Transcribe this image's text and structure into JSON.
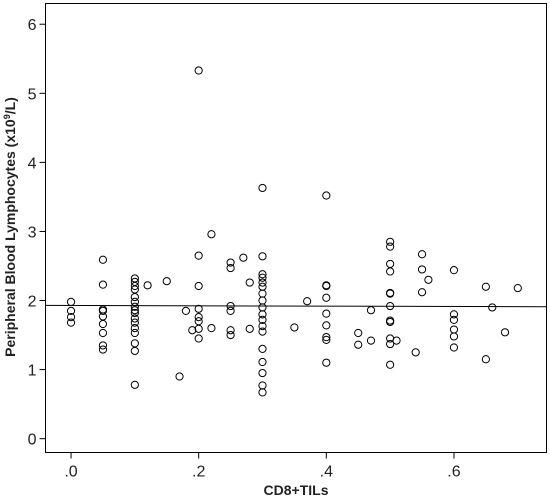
{
  "chart_data": {
    "type": "scatter",
    "xlabel": "CD8+TILs",
    "ylabel_main": "Peripheral Blood Lymphocytes (x10",
    "ylabel_sup": "9",
    "ylabel_end": "/L)",
    "xlim": [
      -0.04,
      0.745
    ],
    "ylim": [
      -0.2,
      6.3
    ],
    "x_ticks": [
      0,
      0.2,
      0.4,
      0.6
    ],
    "x_tick_labels": [
      ".0",
      ".2",
      ".4",
      ".6"
    ],
    "y_ticks": [
      0,
      1,
      2,
      3,
      4,
      5,
      6
    ],
    "y_tick_labels": [
      "0",
      "1",
      "2",
      "3",
      "4",
      "5",
      "6"
    ],
    "grid": false,
    "marker": "open-circle",
    "fit_line": {
      "x": [
        -0.04,
        0.745
      ],
      "y": [
        1.93,
        1.91
      ]
    },
    "points": [
      [
        0.0,
        1.98
      ],
      [
        0.0,
        1.85
      ],
      [
        0.0,
        1.76
      ],
      [
        0.0,
        1.68
      ],
      [
        0.05,
        2.59
      ],
      [
        0.05,
        2.23
      ],
      [
        0.05,
        1.87
      ],
      [
        0.05,
        1.85
      ],
      [
        0.05,
        1.77
      ],
      [
        0.05,
        1.66
      ],
      [
        0.05,
        1.53
      ],
      [
        0.05,
        1.35
      ],
      [
        0.05,
        1.29
      ],
      [
        0.1,
        2.32
      ],
      [
        0.1,
        2.27
      ],
      [
        0.1,
        2.21
      ],
      [
        0.1,
        2.16
      ],
      [
        0.1,
        2.05
      ],
      [
        0.1,
        1.98
      ],
      [
        0.1,
        1.91
      ],
      [
        0.1,
        1.86
      ],
      [
        0.1,
        1.82
      ],
      [
        0.1,
        1.74
      ],
      [
        0.1,
        1.68
      ],
      [
        0.1,
        1.6
      ],
      [
        0.1,
        1.53
      ],
      [
        0.1,
        1.38
      ],
      [
        0.1,
        1.27
      ],
      [
        0.1,
        0.78
      ],
      [
        0.12,
        2.22
      ],
      [
        0.15,
        2.28
      ],
      [
        0.17,
        0.9
      ],
      [
        0.18,
        1.85
      ],
      [
        0.19,
        1.57
      ],
      [
        0.2,
        5.33
      ],
      [
        0.2,
        2.65
      ],
      [
        0.2,
        2.21
      ],
      [
        0.2,
        1.88
      ],
      [
        0.2,
        1.76
      ],
      [
        0.2,
        1.7
      ],
      [
        0.2,
        1.59
      ],
      [
        0.2,
        1.45
      ],
      [
        0.22,
        2.96
      ],
      [
        0.22,
        1.6
      ],
      [
        0.25,
        2.55
      ],
      [
        0.25,
        2.47
      ],
      [
        0.25,
        1.92
      ],
      [
        0.25,
        1.85
      ],
      [
        0.25,
        1.57
      ],
      [
        0.25,
        1.5
      ],
      [
        0.27,
        2.62
      ],
      [
        0.28,
        2.26
      ],
      [
        0.28,
        1.59
      ],
      [
        0.3,
        3.63
      ],
      [
        0.3,
        2.64
      ],
      [
        0.3,
        2.38
      ],
      [
        0.3,
        2.33
      ],
      [
        0.3,
        2.26
      ],
      [
        0.3,
        2.2
      ],
      [
        0.3,
        2.1
      ],
      [
        0.3,
        2.0
      ],
      [
        0.3,
        1.9
      ],
      [
        0.3,
        1.8
      ],
      [
        0.3,
        1.72
      ],
      [
        0.3,
        1.63
      ],
      [
        0.3,
        1.55
      ],
      [
        0.3,
        1.3
      ],
      [
        0.3,
        1.11
      ],
      [
        0.3,
        0.95
      ],
      [
        0.3,
        0.77
      ],
      [
        0.3,
        0.67
      ],
      [
        0.35,
        1.61
      ],
      [
        0.37,
        1.99
      ],
      [
        0.4,
        3.52
      ],
      [
        0.4,
        2.22
      ],
      [
        0.4,
        2.21
      ],
      [
        0.4,
        2.04
      ],
      [
        0.4,
        1.81
      ],
      [
        0.4,
        1.64
      ],
      [
        0.4,
        1.47
      ],
      [
        0.4,
        1.43
      ],
      [
        0.4,
        1.1
      ],
      [
        0.45,
        1.53
      ],
      [
        0.45,
        1.36
      ],
      [
        0.47,
        1.86
      ],
      [
        0.47,
        1.42
      ],
      [
        0.5,
        2.85
      ],
      [
        0.5,
        2.78
      ],
      [
        0.5,
        2.53
      ],
      [
        0.5,
        2.42
      ],
      [
        0.5,
        2.11
      ],
      [
        0.5,
        2.1
      ],
      [
        0.5,
        1.92
      ],
      [
        0.5,
        1.71
      ],
      [
        0.5,
        1.69
      ],
      [
        0.5,
        1.45
      ],
      [
        0.5,
        1.37
      ],
      [
        0.5,
        1.07
      ],
      [
        0.51,
        1.42
      ],
      [
        0.54,
        1.25
      ],
      [
        0.55,
        2.67
      ],
      [
        0.55,
        2.45
      ],
      [
        0.56,
        2.3
      ],
      [
        0.55,
        2.12
      ],
      [
        0.6,
        2.44
      ],
      [
        0.6,
        1.8
      ],
      [
        0.6,
        1.72
      ],
      [
        0.6,
        1.58
      ],
      [
        0.6,
        1.48
      ],
      [
        0.6,
        1.32
      ],
      [
        0.65,
        2.2
      ],
      [
        0.65,
        1.15
      ],
      [
        0.66,
        1.9
      ],
      [
        0.68,
        1.54
      ],
      [
        0.7,
        2.18
      ]
    ]
  }
}
